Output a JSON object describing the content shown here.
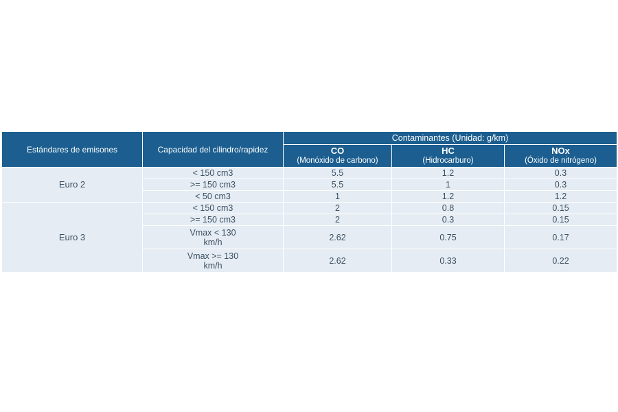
{
  "table": {
    "headers": {
      "standard": "Estándares de emisones",
      "capacity": "Capacidad del cilindro/rapidez",
      "pollutants_group": "Contaminantes (Unidad: g/km)",
      "pollutants": [
        {
          "code": "CO",
          "name": "(Monóxido de carbono)"
        },
        {
          "code": "HC",
          "name": "(Hidrocarburo)"
        },
        {
          "code": "NOx",
          "name": "(Óxido de nitrógeno)"
        }
      ]
    },
    "groups": [
      {
        "standard": "Euro 2",
        "rows": [
          {
            "capacity": "< 150 cm3",
            "co": "5.5",
            "hc": "1.2",
            "nox": "0.3"
          },
          {
            "capacity": ">= 150 cm3",
            "co": "5.5",
            "hc": "1",
            "nox": "0.3"
          },
          {
            "capacity": "< 50 cm3",
            "co": "1",
            "hc": "1.2",
            "nox": "1.2"
          }
        ]
      },
      {
        "standard": "Euro 3",
        "rows": [
          {
            "capacity": "< 150 cm3",
            "co": "2",
            "hc": "0.8",
            "nox": "0.15"
          },
          {
            "capacity": ">= 150 cm3",
            "co": "2",
            "hc": "0.3",
            "nox": "0.15"
          },
          {
            "capacity_line1": "Vmax < 130",
            "capacity_line2": "km/h",
            "co": "2.62",
            "hc": "0.75",
            "nox": "0.17"
          },
          {
            "capacity_line1": "Vmax >= 130",
            "capacity_line2": "km/h",
            "co": "2.62",
            "hc": "0.33",
            "nox": "0.22"
          }
        ]
      }
    ]
  }
}
